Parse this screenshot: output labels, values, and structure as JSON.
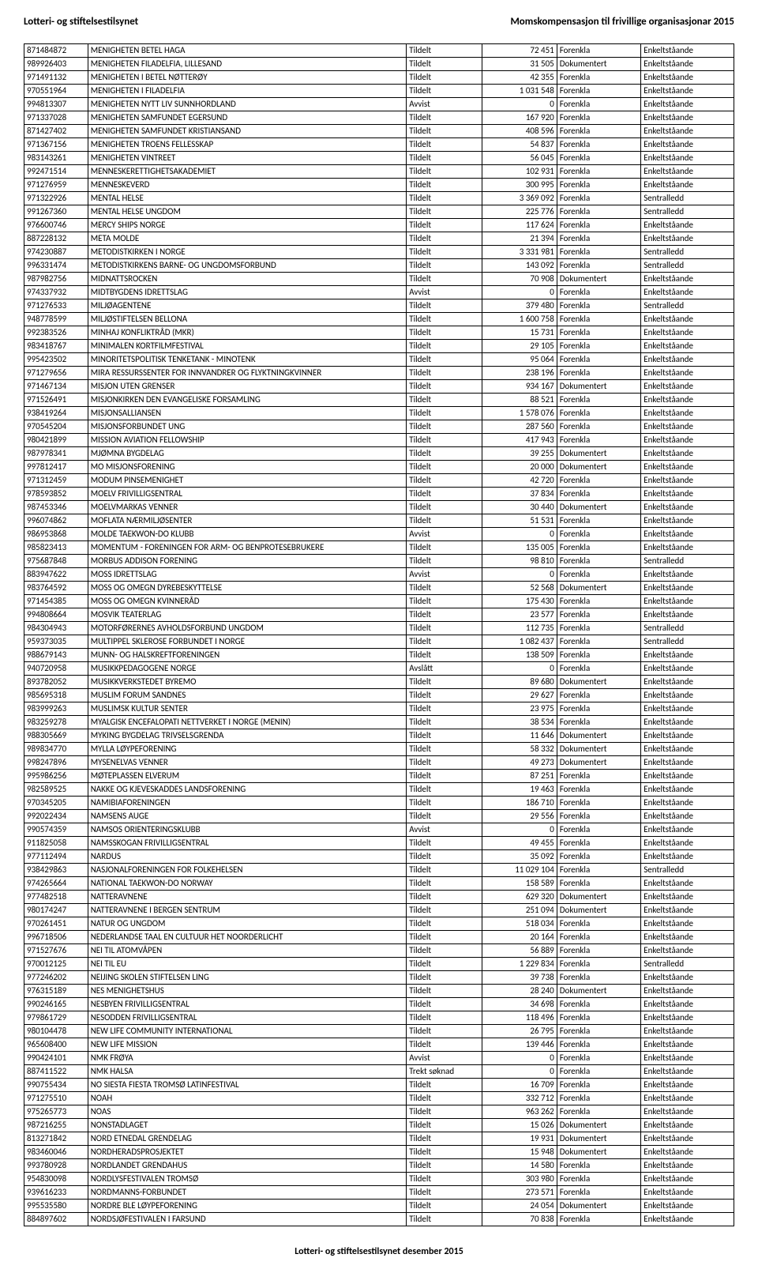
{
  "header": {
    "left": "Lotteri- og stiftelsestilsynet",
    "right": "Momskompensasjon til frivillige organisasjonar 2015"
  },
  "footer": "Lotteri- og stiftelsestilsynet desember 2015",
  "rows": [
    [
      "871484872",
      "MENIGHETEN BETEL HAGA",
      "Tildelt",
      "72 451",
      "Forenkla",
      "Enkeltståande"
    ],
    [
      "989926403",
      "MENIGHETEN FILADELFIA, LILLESAND",
      "Tildelt",
      "31 505",
      "Dokumentert",
      "Enkeltståande"
    ],
    [
      "971491132",
      "MENIGHETEN I BETEL NØTTERØY",
      "Tildelt",
      "42 355",
      "Forenkla",
      "Enkeltståande"
    ],
    [
      "970551964",
      "MENIGHETEN I FILADELFIA",
      "Tildelt",
      "1 031 548",
      "Forenkla",
      "Enkeltståande"
    ],
    [
      "994813307",
      "MENIGHETEN NYTT LIV SUNNHORDLAND",
      "Avvist",
      "0",
      "Forenkla",
      "Enkeltståande"
    ],
    [
      "971337028",
      "MENIGHETEN SAMFUNDET EGERSUND",
      "Tildelt",
      "167 920",
      "Forenkla",
      "Enkeltståande"
    ],
    [
      "871427402",
      "MENIGHETEN SAMFUNDET KRISTIANSAND",
      "Tildelt",
      "408 596",
      "Forenkla",
      "Enkeltståande"
    ],
    [
      "971367156",
      "MENIGHETEN TROENS FELLESSKAP",
      "Tildelt",
      "54 837",
      "Forenkla",
      "Enkeltståande"
    ],
    [
      "983143261",
      "MENIGHETEN VINTREET",
      "Tildelt",
      "56 045",
      "Forenkla",
      "Enkeltståande"
    ],
    [
      "992471514",
      "MENNESKERETTIGHETSAKADEMIET",
      "Tildelt",
      "102 931",
      "Forenkla",
      "Enkeltståande"
    ],
    [
      "971276959",
      "MENNESKEVERD",
      "Tildelt",
      "300 995",
      "Forenkla",
      "Enkeltståande"
    ],
    [
      "971322926",
      "MENTAL HELSE",
      "Tildelt",
      "3 369 092",
      "Forenkla",
      "Sentralledd"
    ],
    [
      "991267360",
      "MENTAL HELSE UNGDOM",
      "Tildelt",
      "225 776",
      "Forenkla",
      "Sentralledd"
    ],
    [
      "976600746",
      "MERCY SHIPS NORGE",
      "Tildelt",
      "117 624",
      "Forenkla",
      "Enkeltståande"
    ],
    [
      "887228132",
      "META MOLDE",
      "Tildelt",
      "21 394",
      "Forenkla",
      "Enkeltståande"
    ],
    [
      "974230887",
      "METODISTKIRKEN I NORGE",
      "Tildelt",
      "3 331 981",
      "Forenkla",
      "Sentralledd"
    ],
    [
      "996331474",
      "METODISTKIRKENS BARNE- OG UNGDOMSFORBUND",
      "Tildelt",
      "143 092",
      "Forenkla",
      "Sentralledd"
    ],
    [
      "987982756",
      "MIDNATTSROCKEN",
      "Tildelt",
      "70 908",
      "Dokumentert",
      "Enkeltståande"
    ],
    [
      "974337932",
      "MIDTBYGDENS IDRETTSLAG",
      "Avvist",
      "0",
      "Forenkla",
      "Enkeltståande"
    ],
    [
      "971276533",
      "MILJØAGENTENE",
      "Tildelt",
      "379 480",
      "Forenkla",
      "Sentralledd"
    ],
    [
      "948778599",
      "MILJØSTIFTELSEN BELLONA",
      "Tildelt",
      "1 600 758",
      "Forenkla",
      "Enkeltståande"
    ],
    [
      "992383526",
      "MINHAJ KONFLIKTRÅD (MKR)",
      "Tildelt",
      "15 731",
      "Forenkla",
      "Enkeltståande"
    ],
    [
      "983418767",
      "MINIMALEN KORTFILMFESTIVAL",
      "Tildelt",
      "29 105",
      "Forenkla",
      "Enkeltståande"
    ],
    [
      "995423502",
      "MINORITETSPOLITISK TENKETANK - MINOTENK",
      "Tildelt",
      "95 064",
      "Forenkla",
      "Enkeltståande"
    ],
    [
      "971279656",
      "MIRA RESSURSSENTER FOR INNVANDRER OG FLYKTNINGKVINNER",
      "Tildelt",
      "238 196",
      "Forenkla",
      "Enkeltståande"
    ],
    [
      "971467134",
      "MISJON UTEN GRENSER",
      "Tildelt",
      "934 167",
      "Dokumentert",
      "Enkeltståande"
    ],
    [
      "971526491",
      "MISJONKIRKEN DEN EVANGELISKE FORSAMLING",
      "Tildelt",
      "88 521",
      "Forenkla",
      "Enkeltståande"
    ],
    [
      "938419264",
      "MISJONSALLIANSEN",
      "Tildelt",
      "1 578 076",
      "Forenkla",
      "Enkeltståande"
    ],
    [
      "970545204",
      "MISJONSFORBUNDET UNG",
      "Tildelt",
      "287 560",
      "Forenkla",
      "Enkeltståande"
    ],
    [
      "980421899",
      "MISSION AVIATION FELLOWSHIP",
      "Tildelt",
      "417 943",
      "Forenkla",
      "Enkeltståande"
    ],
    [
      "987978341",
      "MJØMNA BYGDELAG",
      "Tildelt",
      "39 255",
      "Dokumentert",
      "Enkeltståande"
    ],
    [
      "997812417",
      "MO MISJONSFORENING",
      "Tildelt",
      "20 000",
      "Dokumentert",
      "Enkeltståande"
    ],
    [
      "971312459",
      "MODUM PINSEMENIGHET",
      "Tildelt",
      "42 720",
      "Forenkla",
      "Enkeltståande"
    ],
    [
      "978593852",
      "MOELV FRIVILLIGSENTRAL",
      "Tildelt",
      "37 834",
      "Forenkla",
      "Enkeltståande"
    ],
    [
      "987453346",
      "MOELVMARKAS VENNER",
      "Tildelt",
      "30 440",
      "Dokumentert",
      "Enkeltståande"
    ],
    [
      "996074862",
      "MOFLATA NÆRMILJØSENTER",
      "Tildelt",
      "51 531",
      "Forenkla",
      "Enkeltståande"
    ],
    [
      "986953868",
      "MOLDE TAEKWON-DO KLUBB",
      "Avvist",
      "0",
      "Forenkla",
      "Enkeltståande"
    ],
    [
      "985823413",
      "MOMENTUM - FORENINGEN FOR ARM- OG BENPROTESEBRUKERE",
      "Tildelt",
      "135 005",
      "Forenkla",
      "Enkeltståande"
    ],
    [
      "975687848",
      "MORBUS ADDISON FORENING",
      "Tildelt",
      "98 810",
      "Forenkla",
      "Sentralledd"
    ],
    [
      "883947622",
      "MOSS IDRETTSLAG",
      "Avvist",
      "0",
      "Forenkla",
      "Enkeltståande"
    ],
    [
      "983764592",
      "MOSS OG OMEGN DYREBESKYTTELSE",
      "Tildelt",
      "52 568",
      "Dokumentert",
      "Enkeltståande"
    ],
    [
      "971454385",
      "MOSS OG OMEGN KVINNERÅD",
      "Tildelt",
      "175 430",
      "Forenkla",
      "Enkeltståande"
    ],
    [
      "994808664",
      "MOSVIK TEATERLAG",
      "Tildelt",
      "23 577",
      "Forenkla",
      "Enkeltståande"
    ],
    [
      "984304943",
      "MOTORFØRERNES AVHOLDSFORBUND UNGDOM",
      "Tildelt",
      "112 735",
      "Forenkla",
      "Sentralledd"
    ],
    [
      "959373035",
      "MULTIPPEL SKLEROSE FORBUNDET I NORGE",
      "Tildelt",
      "1 082 437",
      "Forenkla",
      "Sentralledd"
    ],
    [
      "988679143",
      "MUNN- OG HALSKREFTFORENINGEN",
      "Tildelt",
      "138 509",
      "Forenkla",
      "Enkeltståande"
    ],
    [
      "940720958",
      "MUSIKKPEDAGOGENE NORGE",
      "Avslått",
      "0",
      "Forenkla",
      "Enkeltståande"
    ],
    [
      "893782052",
      "MUSIKKVERKSTEDET BYREMO",
      "Tildelt",
      "89 680",
      "Dokumentert",
      "Enkeltståande"
    ],
    [
      "985695318",
      "MUSLIM FORUM SANDNES",
      "Tildelt",
      "29 627",
      "Forenkla",
      "Enkeltståande"
    ],
    [
      "983999263",
      "MUSLIMSK KULTUR SENTER",
      "Tildelt",
      "23 975",
      "Forenkla",
      "Enkeltståande"
    ],
    [
      "983259278",
      "MYALGISK ENCEFALOPATI NETTVERKET I NORGE (MENIN)",
      "Tildelt",
      "38 534",
      "Forenkla",
      "Enkeltståande"
    ],
    [
      "988305669",
      "MYKING BYGDELAG TRIVSELSGRENDA",
      "Tildelt",
      "11 646",
      "Dokumentert",
      "Enkeltståande"
    ],
    [
      "989834770",
      "MYLLA LØYPEFORENING",
      "Tildelt",
      "58 332",
      "Dokumentert",
      "Enkeltståande"
    ],
    [
      "998247896",
      "MYSENELVAS VENNER",
      "Tildelt",
      "49 273",
      "Dokumentert",
      "Enkeltståande"
    ],
    [
      "995986256",
      "MØTEPLASSEN ELVERUM",
      "Tildelt",
      "87 251",
      "Forenkla",
      "Enkeltståande"
    ],
    [
      "982589525",
      "NAKKE OG KJEVESKADDES LANDSFORENING",
      "Tildelt",
      "19 463",
      "Forenkla",
      "Enkeltståande"
    ],
    [
      "970345205",
      "NAMIBIAFORENINGEN",
      "Tildelt",
      "186 710",
      "Forenkla",
      "Enkeltståande"
    ],
    [
      "992022434",
      "NAMSENS AUGE",
      "Tildelt",
      "29 556",
      "Forenkla",
      "Enkeltståande"
    ],
    [
      "990574359",
      "NAMSOS ORIENTERINGSKLUBB",
      "Avvist",
      "0",
      "Forenkla",
      "Enkeltståande"
    ],
    [
      "911825058",
      "NAMSSKOGAN FRIVILLIGSENTRAL",
      "Tildelt",
      "49 455",
      "Forenkla",
      "Enkeltståande"
    ],
    [
      "977112494",
      "NARDUS",
      "Tildelt",
      "35 092",
      "Forenkla",
      "Enkeltståande"
    ],
    [
      "938429863",
      "NASJONALFORENINGEN FOR FOLKEHELSEN",
      "Tildelt",
      "11 029 104",
      "Forenkla",
      "Sentralledd"
    ],
    [
      "974265664",
      "NATIONAL TAEKWON-DO NORWAY",
      "Tildelt",
      "158 589",
      "Forenkla",
      "Enkeltståande"
    ],
    [
      "977482518",
      "NATTERAVNENE",
      "Tildelt",
      "629 320",
      "Dokumentert",
      "Enkeltståande"
    ],
    [
      "980174247",
      "NATTERAVNENE I BERGEN SENTRUM",
      "Tildelt",
      "251 094",
      "Dokumentert",
      "Enkeltståande"
    ],
    [
      "970261451",
      "NATUR OG UNGDOM",
      "Tildelt",
      "518 034",
      "Forenkla",
      "Enkeltståande"
    ],
    [
      "996718506",
      "NEDERLANDSE TAAL EN CULTUUR HET NOORDERLICHT",
      "Tildelt",
      "20 164",
      "Forenkla",
      "Enkeltståande"
    ],
    [
      "971527676",
      "NEI TIL ATOMVÅPEN",
      "Tildelt",
      "56 889",
      "Forenkla",
      "Enkeltståande"
    ],
    [
      "970012125",
      "NEI TIL EU",
      "Tildelt",
      "1 229 834",
      "Forenkla",
      "Sentralledd"
    ],
    [
      "977246202",
      "NEIJING SKOLEN STIFTELSEN LING",
      "Tildelt",
      "39 738",
      "Forenkla",
      "Enkeltståande"
    ],
    [
      "976315189",
      "NES MENIGHETSHUS",
      "Tildelt",
      "28 240",
      "Dokumentert",
      "Enkeltståande"
    ],
    [
      "990246165",
      "NESBYEN FRIVILLIGSENTRAL",
      "Tildelt",
      "34 698",
      "Forenkla",
      "Enkeltståande"
    ],
    [
      "979861729",
      "NESODDEN FRIVILLIGSENTRAL",
      "Tildelt",
      "118 496",
      "Forenkla",
      "Enkeltståande"
    ],
    [
      "980104478",
      "NEW LIFE COMMUNITY INTERNATIONAL",
      "Tildelt",
      "26 795",
      "Forenkla",
      "Enkeltståande"
    ],
    [
      "965608400",
      "NEW LIFE MISSION",
      "Tildelt",
      "139 446",
      "Forenkla",
      "Enkeltståande"
    ],
    [
      "990424101",
      "NMK FRØYA",
      "Avvist",
      "0",
      "Forenkla",
      "Enkeltståande"
    ],
    [
      "887411522",
      "NMK HALSA",
      "Trekt søknad",
      "0",
      "Forenkla",
      "Enkeltståande"
    ],
    [
      "990755434",
      "NO SIESTA FIESTA TROMSØ LATINFESTIVAL",
      "Tildelt",
      "16 709",
      "Forenkla",
      "Enkeltståande"
    ],
    [
      "971275510",
      "NOAH",
      "Tildelt",
      "332 712",
      "Forenkla",
      "Enkeltståande"
    ],
    [
      "975265773",
      "NOAS",
      "Tildelt",
      "963 262",
      "Forenkla",
      "Enkeltståande"
    ],
    [
      "987216255",
      "NONSTADLAGET",
      "Tildelt",
      "15 026",
      "Dokumentert",
      "Enkeltståande"
    ],
    [
      "813271842",
      "NORD ETNEDAL GRENDELAG",
      "Tildelt",
      "19 931",
      "Dokumentert",
      "Enkeltståande"
    ],
    [
      "983460046",
      "NORDHERADSPROSJEKTET",
      "Tildelt",
      "15 948",
      "Dokumentert",
      "Enkeltståande"
    ],
    [
      "993780928",
      "NORDLANDET GRENDAHUS",
      "Tildelt",
      "14 580",
      "Forenkla",
      "Enkeltståande"
    ],
    [
      "954830098",
      "NORDLYSFESTIVALEN TROMSØ",
      "Tildelt",
      "303 980",
      "Forenkla",
      "Enkeltståande"
    ],
    [
      "939616233",
      "NORDMANNS-FORBUNDET",
      "Tildelt",
      "273 571",
      "Forenkla",
      "Enkeltståande"
    ],
    [
      "995535580",
      "NORDRE BLE LØYPEFORENING",
      "Tildelt",
      "24 054",
      "Dokumentert",
      "Enkeltståande"
    ],
    [
      "884897602",
      "NORDSJØFESTIVALEN I FARSUND",
      "Tildelt",
      "70 838",
      "Forenkla",
      "Enkeltståande"
    ]
  ]
}
